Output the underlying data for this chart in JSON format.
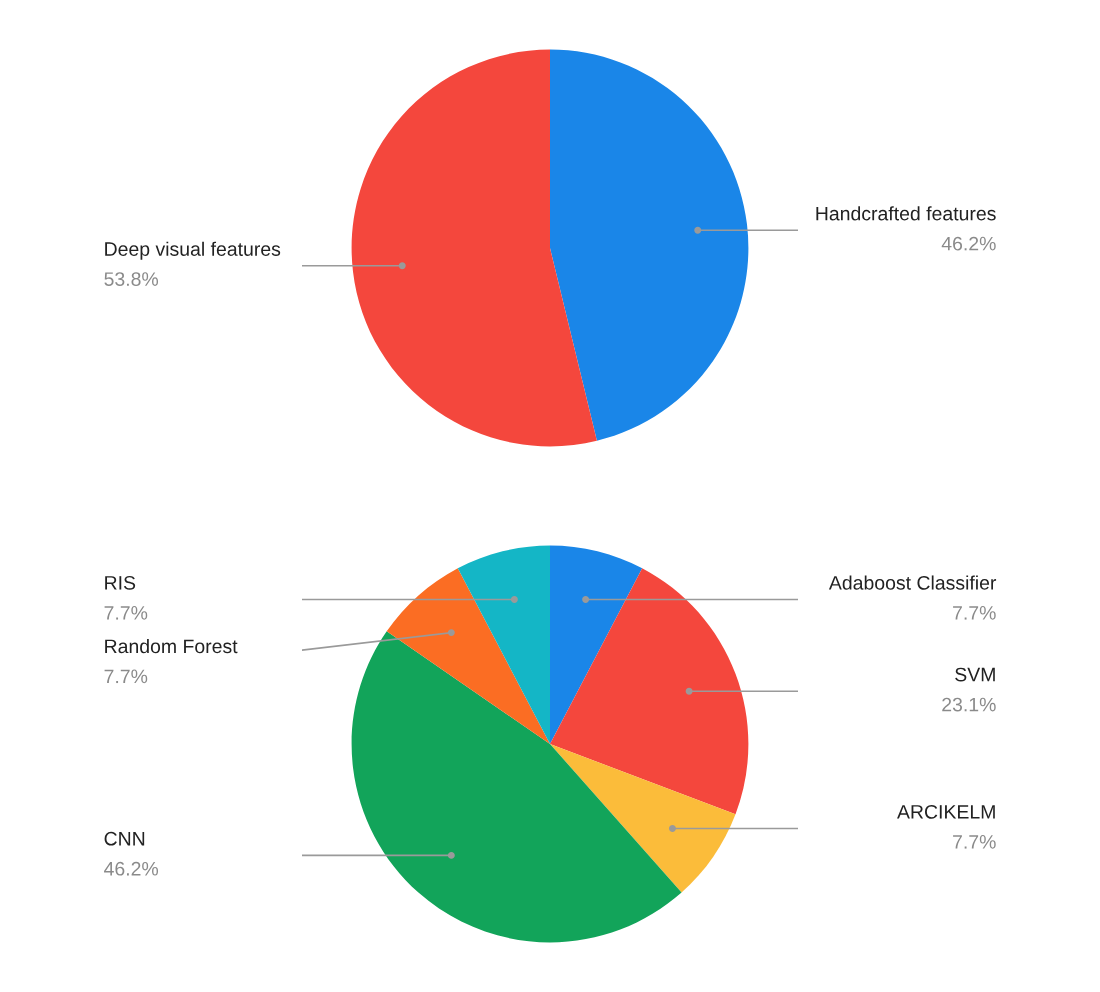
{
  "chart_data": [
    {
      "type": "pie",
      "categories": [
        "Handcrafted features",
        "Deep visual features"
      ],
      "values": [
        46.2,
        53.8
      ],
      "colors": [
        "#1a86e8",
        "#f4473d"
      ],
      "data_labels": true,
      "value_labels": [
        "46.2%",
        "53.8%"
      ]
    },
    {
      "type": "pie",
      "categories": [
        "Adaboost Classifier",
        "SVM",
        "ARCIKELM",
        "CNN",
        "Random Forest",
        "RIS"
      ],
      "values": [
        7.7,
        23.1,
        7.7,
        46.2,
        7.7,
        7.7
      ],
      "colors": [
        "#1a86e8",
        "#f4473d",
        "#fbbc3a",
        "#12a45a",
        "#fb6d23",
        "#14b6c6"
      ],
      "data_labels": true,
      "value_labels": [
        "7.7%",
        "23.1%",
        "7.7%",
        "46.2%",
        "7.7%",
        "7.7%"
      ]
    }
  ]
}
